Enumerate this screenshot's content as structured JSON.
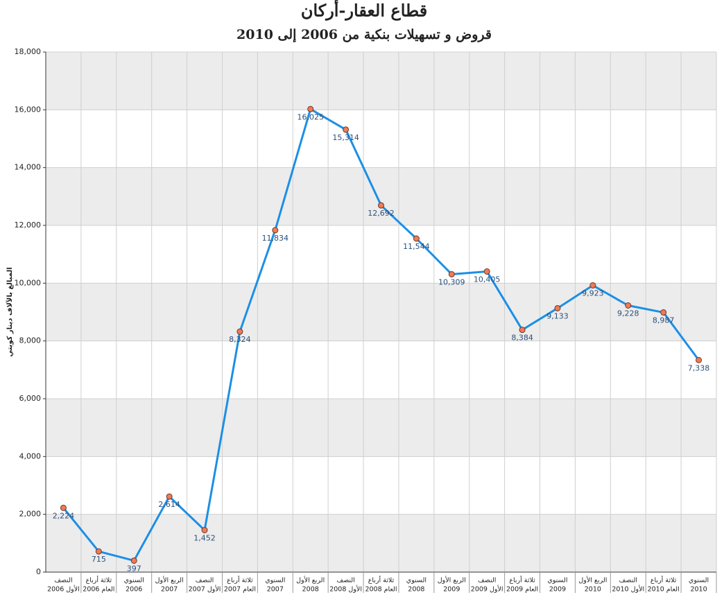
{
  "chart_data": {
    "type": "line",
    "title": "قطاع العقار-أركان",
    "subtitle": "قروض و تسهيلات بنكية من 2006 إلى 2010",
    "y_label": "المبالغ بالآلاف دينار كويتي",
    "categories": [
      [
        "النصف",
        "الأول 2006"
      ],
      [
        "ثلاثة أرباع",
        "العام 2006"
      ],
      [
        "السنوي",
        "2006"
      ],
      [
        "الربع الأول",
        "2007"
      ],
      [
        "النصف",
        "الأول 2007"
      ],
      [
        "ثلاثة أرباع",
        "العام 2007"
      ],
      [
        "السنوي",
        "2007"
      ],
      [
        "الربع الأول",
        "2008"
      ],
      [
        "النصف",
        "الأول 2008"
      ],
      [
        "ثلاثة أرباع",
        "العام 2008"
      ],
      [
        "السنوي",
        "2008"
      ],
      [
        "الربع الأول",
        "2009"
      ],
      [
        "النصف",
        "الأول 2009"
      ],
      [
        "ثلاثة أرباع",
        "العام 2009"
      ],
      [
        "السنوي",
        "2009"
      ],
      [
        "الربع الأول",
        "2010"
      ],
      [
        "النصف",
        "الأول 2010"
      ],
      [
        "ثلاثة أرباع",
        "العام 2010"
      ],
      [
        "السنوي",
        "2010"
      ]
    ],
    "values": [
      2224,
      715,
      397,
      2614,
      1452,
      8324,
      11834,
      16025,
      15314,
      12692,
      11544,
      10309,
      10405,
      8384,
      9133,
      9923,
      9228,
      8987,
      7338
    ],
    "value_labels": [
      "2,224",
      "715",
      "397",
      "2,614",
      "1,452",
      "8,324",
      "11,834",
      "16,025",
      "15,314",
      "12,692",
      "11,544",
      "10,309",
      "10,405",
      "8,384",
      "9,133",
      "9,923",
      "9,228",
      "8,987",
      "7,338"
    ],
    "color": "#1b8fe6",
    "marker_color": "#f07a55",
    "ylim": [
      0,
      18000
    ],
    "yticks": [
      0,
      {
        "value": 2000,
        "label": "2,000"
      },
      {
        "value": 4000,
        "label": "4,000"
      },
      {
        "value": 6000,
        "label": "6,000"
      },
      {
        "value": 8000,
        "label": "8,000"
      },
      {
        "value": 10000,
        "label": "10,000"
      },
      {
        "value": 12000,
        "label": "12,000"
      },
      {
        "value": 14000,
        "label": "14,000"
      },
      {
        "value": 16000,
        "label": "16,000"
      },
      {
        "value": 18000,
        "label": "18,000"
      }
    ],
    "grid": true
  }
}
